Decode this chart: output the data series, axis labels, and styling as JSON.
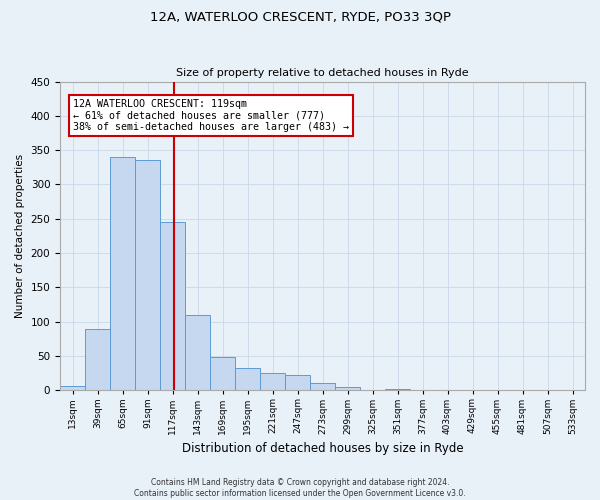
{
  "title": "12A, WATERLOO CRESCENT, RYDE, PO33 3QP",
  "subtitle": "Size of property relative to detached houses in Ryde",
  "xlabel": "Distribution of detached houses by size in Ryde",
  "ylabel": "Number of detached properties",
  "bin_labels": [
    "13sqm",
    "39sqm",
    "65sqm",
    "91sqm",
    "117sqm",
    "143sqm",
    "169sqm",
    "195sqm",
    "221sqm",
    "247sqm",
    "273sqm",
    "299sqm",
    "325sqm",
    "351sqm",
    "377sqm",
    "403sqm",
    "429sqm",
    "455sqm",
    "481sqm",
    "507sqm",
    "533sqm"
  ],
  "bar_values": [
    7,
    90,
    340,
    335,
    245,
    110,
    49,
    32,
    26,
    22,
    10,
    5,
    1,
    2,
    0,
    0,
    0,
    0,
    0,
    0,
    0
  ],
  "bin_edges": [
    0,
    26,
    52,
    78,
    104,
    130,
    156,
    182,
    208,
    234,
    260,
    286,
    312,
    338,
    364,
    390,
    416,
    442,
    468,
    494,
    520,
    546
  ],
  "property_value": 119,
  "vline_x": 119,
  "bar_color": "#c5d8f0",
  "bar_edge_color": "#5b9bd5",
  "vline_color": "#cc0000",
  "annotation_line1": "12A WATERLOO CRESCENT: 119sqm",
  "annotation_line2": "← 61% of detached houses are smaller (777)",
  "annotation_line3": "38% of semi-detached houses are larger (483) →",
  "annotation_box_color": "#ffffff",
  "annotation_box_edge_color": "#cc0000",
  "ylim": [
    0,
    450
  ],
  "yticks": [
    0,
    50,
    100,
    150,
    200,
    250,
    300,
    350,
    400,
    450
  ],
  "grid_color": "#c8d8e8",
  "background_color": "#e8f0f8",
  "footer_text": "Contains HM Land Registry data © Crown copyright and database right 2024.\nContains public sector information licensed under the Open Government Licence v3.0."
}
